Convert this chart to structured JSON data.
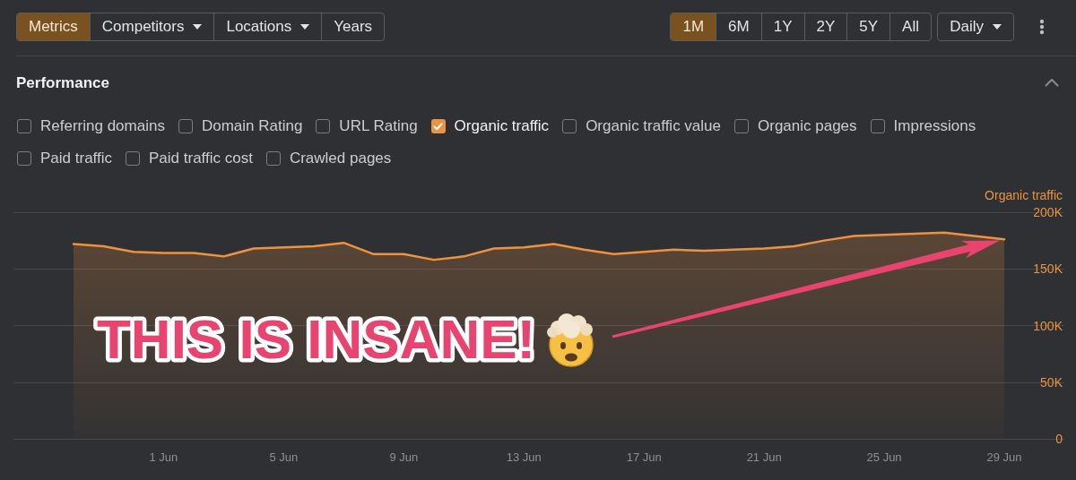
{
  "chart_data": {
    "type": "area",
    "title": "Performance",
    "ylabel": "Organic traffic",
    "x": [
      "--05-29",
      "--05-30",
      "--05-31",
      "--06-01",
      "--06-02",
      "--06-03",
      "--06-04",
      "--06-05",
      "--06-06",
      "--06-07",
      "--06-08",
      "--06-09",
      "--06-10",
      "--06-11",
      "--06-12",
      "--06-13",
      "--06-14",
      "--06-15",
      "--06-16",
      "--06-17",
      "--06-18",
      "--06-19",
      "--06-20",
      "--06-21",
      "--06-22",
      "--06-23",
      "--06-24",
      "--06-25",
      "--06-26",
      "--06-27",
      "--06-28",
      "--06-29"
    ],
    "values": [
      172000,
      170000,
      165000,
      164000,
      164000,
      161000,
      168000,
      169000,
      170000,
      173000,
      163000,
      163000,
      158000,
      161000,
      168000,
      169000,
      172000,
      167000,
      163000,
      165000,
      167000,
      166000,
      167000,
      168000,
      170000,
      175000,
      179000,
      180000,
      181000,
      182000,
      179000,
      176000
    ],
    "color": "#ee9240",
    "xlim": [
      "--05-27",
      "--07-01"
    ],
    "xticks": [
      {
        "value": "--06-01",
        "label": "1 Jun"
      },
      {
        "value": "--06-05",
        "label": "5 Jun"
      },
      {
        "value": "--06-09",
        "label": "9 Jun"
      },
      {
        "value": "--06-13",
        "label": "13 Jun"
      },
      {
        "value": "--06-17",
        "label": "17 Jun"
      },
      {
        "value": "--06-21",
        "label": "21 Jun"
      },
      {
        "value": "--06-25",
        "label": "25 Jun"
      },
      {
        "value": "--06-29",
        "label": "29 Jun"
      }
    ],
    "ylim": [
      0,
      200000
    ],
    "yticks": [
      0,
      {
        "value": 50000,
        "label": "50K"
      },
      {
        "value": 100000,
        "label": "100K"
      },
      {
        "value": 150000,
        "label": "150K"
      },
      {
        "value": 200000,
        "label": "200K"
      }
    ],
    "grid": "y",
    "marker": "none",
    "annotations": [
      "Metrics",
      "Competitors",
      "Locations",
      "Years",
      "1M",
      "6M",
      "1Y",
      "2Y",
      "5Y",
      "All",
      "Daily",
      "Referring domains",
      "Domain Rating",
      "URL Rating",
      "Organic traffic",
      "Organic traffic value",
      "Organic pages",
      "Impressions",
      "Paid traffic",
      "Paid traffic cost",
      "Crawled pages",
      "THIS IS INSANE!"
    ]
  }
}
